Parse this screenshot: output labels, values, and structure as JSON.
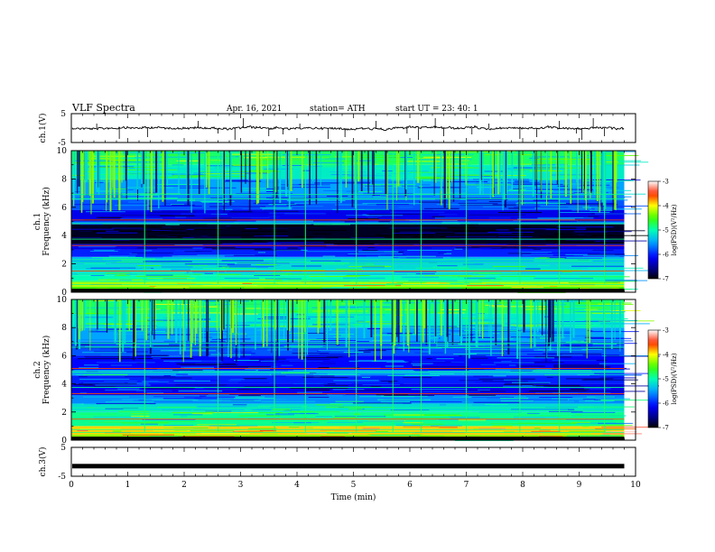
{
  "header": {
    "title": "VLF  Spectra",
    "date": "Apr. 16, 2021",
    "station": "station= ATH",
    "start": "start  UT  =    23: 40: 1"
  },
  "chart_data": [
    {
      "type": "line",
      "name": "ch1-waveform",
      "ylabel": "ch.1(V)",
      "yticks": [
        "5",
        "-5"
      ],
      "ylim": [
        -5,
        5
      ],
      "xlim": [
        0,
        10
      ],
      "baseline": 0,
      "description_shown": "noisy trace near 0 V with spikes"
    },
    {
      "type": "heatmap",
      "name": "ch1-spectrogram",
      "ylabel": "ch.1\nFrequency (kHz)",
      "ylabel_lines": [
        "ch.1",
        "Frequency (kHz)"
      ],
      "yticks": [
        "0",
        "2",
        "4",
        "6",
        "8",
        "10"
      ],
      "ylim": [
        0,
        10
      ],
      "xlim": [
        0,
        10
      ],
      "data_end_min": 9.8,
      "colorbar": {
        "label": "log(PSD)(V²/Hz)",
        "ticks": [
          "-3",
          "-4",
          "-5",
          "-6",
          "-7"
        ],
        "range": [
          -7,
          -3
        ]
      },
      "bands_khz_level": [
        [
          0,
          0.4,
          -4.5
        ],
        [
          0.4,
          0.8,
          -4.2
        ],
        [
          0.8,
          1.2,
          -5.0
        ],
        [
          1.2,
          2.0,
          -5.2
        ],
        [
          2.0,
          2.5,
          -5.4
        ],
        [
          2.5,
          3.0,
          -6.0
        ],
        [
          3.0,
          3.4,
          -6.2
        ],
        [
          3.4,
          4.8,
          -6.9
        ],
        [
          4.8,
          5.0,
          -5.6
        ],
        [
          5.0,
          5.8,
          -6.2
        ],
        [
          5.8,
          6.5,
          -5.8
        ],
        [
          6.5,
          7.0,
          -5.6
        ],
        [
          7.0,
          8.0,
          -5.5
        ],
        [
          8.0,
          9.0,
          -5.1
        ],
        [
          9.0,
          10.0,
          -4.8
        ]
      ]
    },
    {
      "type": "heatmap",
      "name": "ch2-spectrogram",
      "ylabel": "ch.2\nFrequency (kHz)",
      "ylabel_lines": [
        "ch.2",
        "Frequency (kHz)"
      ],
      "yticks": [
        "0",
        "2",
        "4",
        "6",
        "8",
        "10"
      ],
      "ylim": [
        0,
        10
      ],
      "xlim": [
        0,
        10
      ],
      "data_end_min": 9.8,
      "colorbar": {
        "label": "log(PSD)(V²/Hz)",
        "ticks": [
          "-3",
          "-4",
          "-5",
          "-6",
          "-7"
        ],
        "range": [
          -7,
          -3
        ]
      },
      "bands_khz_level": [
        [
          0,
          0.4,
          -4.3
        ],
        [
          0.4,
          1.0,
          -3.9
        ],
        [
          1.0,
          2.0,
          -4.9
        ],
        [
          2.0,
          2.6,
          -5.2
        ],
        [
          2.6,
          3.2,
          -5.6
        ],
        [
          3.2,
          4.0,
          -6.2
        ],
        [
          4.0,
          4.6,
          -6.0
        ],
        [
          4.6,
          5.0,
          -5.5
        ],
        [
          5.0,
          6.0,
          -6.1
        ],
        [
          6.0,
          7.0,
          -5.8
        ],
        [
          7.0,
          8.0,
          -5.5
        ],
        [
          8.0,
          9.0,
          -5.1
        ],
        [
          9.0,
          10.0,
          -4.8
        ]
      ]
    },
    {
      "type": "line",
      "name": "ch3-waveform",
      "ylabel": "ch.3(V)",
      "yticks": [
        "5",
        "-5"
      ],
      "ylim": [
        -5,
        5
      ],
      "xlim": [
        0,
        10
      ],
      "baseline": -1.5,
      "xlabel": "Time  (min)",
      "xticks": [
        "0",
        "1",
        "2",
        "3",
        "4",
        "5",
        "6",
        "7",
        "8",
        "9",
        "10"
      ]
    }
  ]
}
